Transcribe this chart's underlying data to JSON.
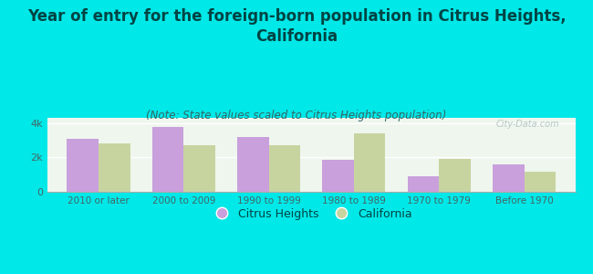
{
  "categories": [
    "2010 or later",
    "2000 to 2009",
    "1990 to 1999",
    "1980 to 1989",
    "1970 to 1979",
    "Before 1970"
  ],
  "citrus_heights": [
    3100,
    3750,
    3200,
    1850,
    900,
    1600
  ],
  "california": [
    2800,
    2700,
    2700,
    3400,
    1900,
    1150
  ],
  "citrus_heights_color": "#c9a0dc",
  "california_color": "#c8d4a0",
  "background_color": "#00e8e8",
  "plot_bg_top": "#e8f4e8",
  "plot_bg_bottom": "#f8fff8",
  "title": "Year of entry for the foreign-born population in Citrus Heights,\nCalifornia",
  "subtitle": "(Note: State values scaled to Citrus Heights population)",
  "ylabel_ticks": [
    0,
    2000,
    4000
  ],
  "ylabel_labels": [
    "0",
    "2k",
    "4k"
  ],
  "ylim": [
    0,
    4300
  ],
  "watermark": "City-Data.com",
  "legend_citrus": "Citrus Heights",
  "legend_california": "California",
  "title_fontsize": 12,
  "subtitle_fontsize": 8.5,
  "bar_width": 0.37,
  "title_color": "#004444",
  "subtitle_color": "#336666",
  "tick_color": "#446666"
}
